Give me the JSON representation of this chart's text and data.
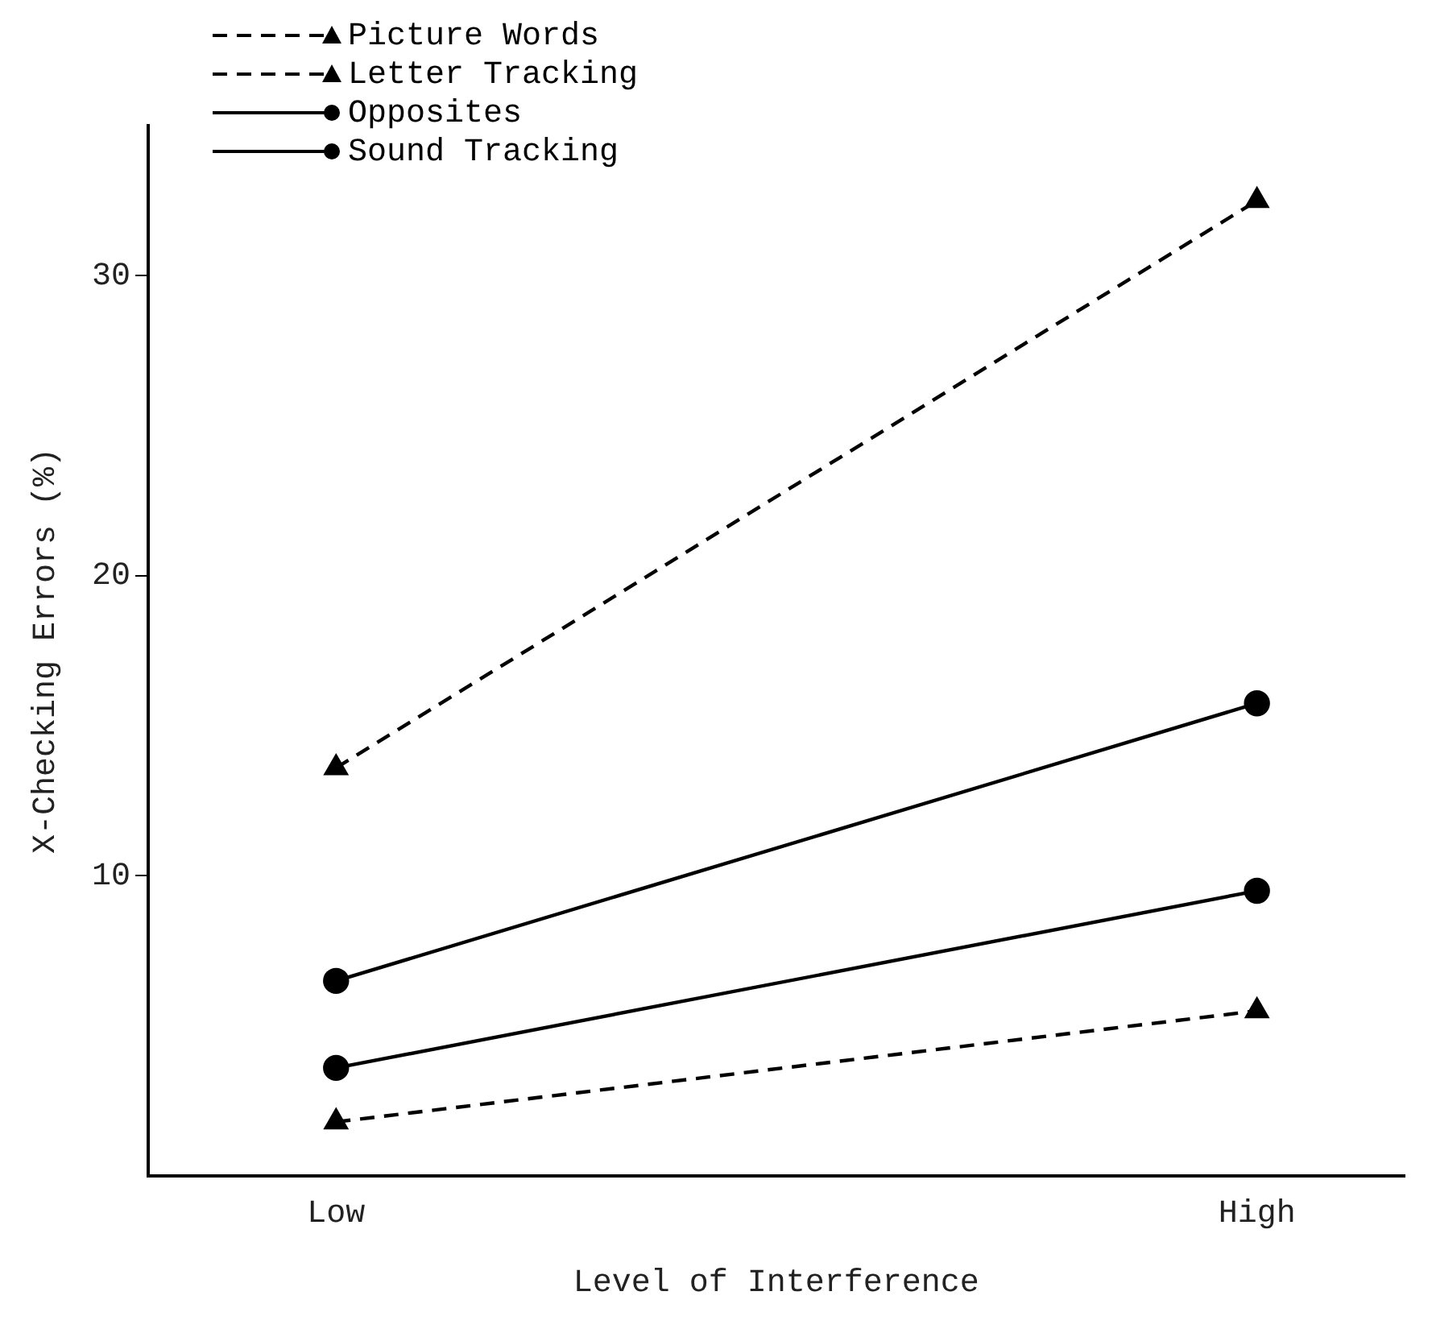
{
  "chart_data": {
    "type": "line",
    "xlabel": "Level of Interference",
    "ylabel": "X-Checking Errors (%)",
    "categories": [
      "Low",
      "High"
    ],
    "series": [
      {
        "name": "Picture Words",
        "color": "#000000",
        "values": [
          1.8,
          5.5
        ],
        "marker": "triangle",
        "line_style": "dashed"
      },
      {
        "name": "Letter Tracking",
        "color": "#000000",
        "values": [
          13.6,
          32.5
        ],
        "marker": "triangle",
        "line_style": "dashed"
      },
      {
        "name": "Opposites",
        "color": "#000000",
        "values": [
          3.6,
          9.5
        ],
        "marker": "circle",
        "line_style": "solid"
      },
      {
        "name": "Sound Tracking",
        "color": "#000000",
        "values": [
          6.5,
          15.75
        ],
        "marker": "circle",
        "line_style": "solid"
      }
    ],
    "ylim": [
      0,
      35
    ],
    "yticks": [
      10,
      20,
      30
    ],
    "grid": false,
    "legend": "top left"
  }
}
